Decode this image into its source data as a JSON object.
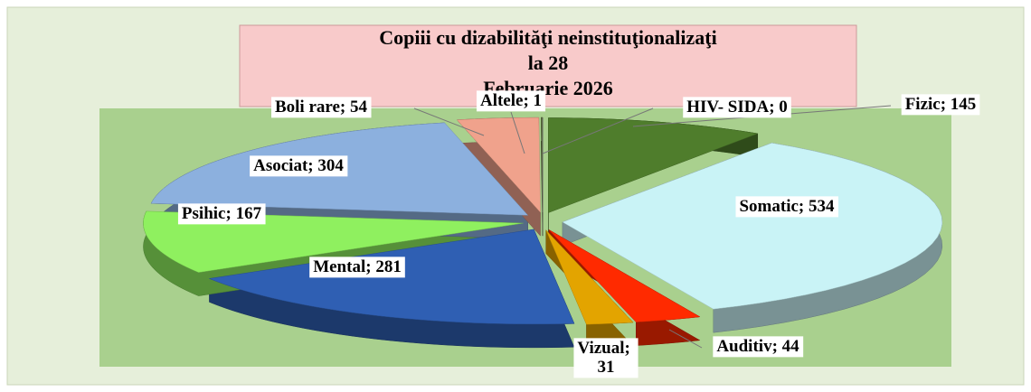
{
  "chart_data": {
    "type": "pie3d",
    "title": [
      "Copiii cu dizabilităţi neinstituţionalizaţi",
      "la 28",
      "Februarie 2026"
    ],
    "label_separator": "; ",
    "categories": [
      "Fizic",
      "Somatic",
      "Auditiv",
      "Vizual",
      "Mental",
      "Psihic",
      "Asociat",
      "Boli rare",
      "Altele",
      "HIV- SIDA"
    ],
    "values": [
      145,
      534,
      44,
      31,
      281,
      167,
      304,
      54,
      1,
      0
    ],
    "colors": [
      "#4f7d2c",
      "#c9f3f6",
      "#ff2a00",
      "#e3a400",
      "#2f5fb3",
      "#8ff05f",
      "#8cb0de",
      "#f0a28c",
      "#5a6e3c",
      "#8a8a8a"
    ]
  }
}
